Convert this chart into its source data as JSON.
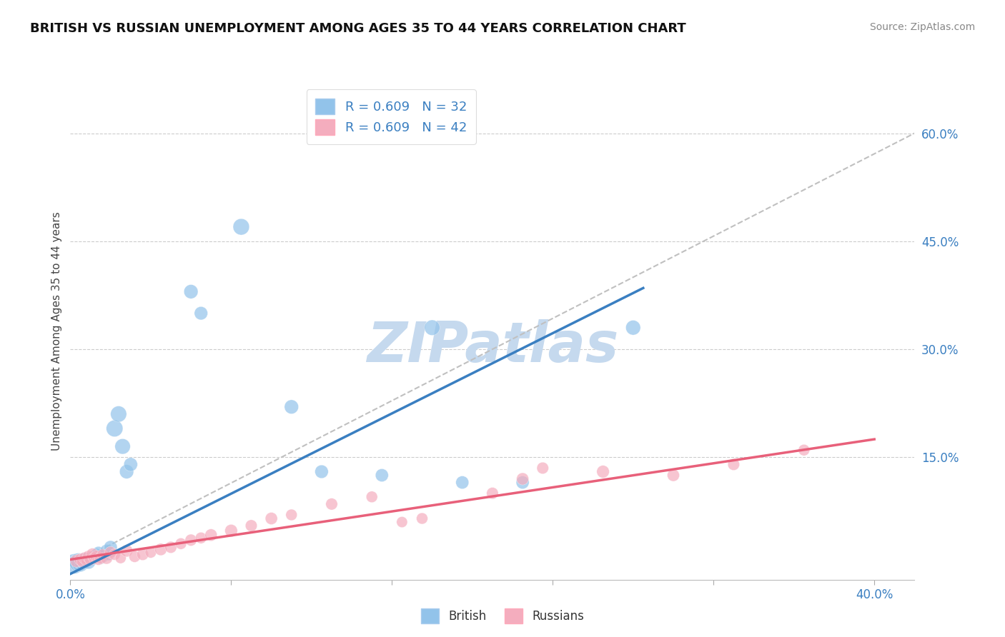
{
  "title": "BRITISH VS RUSSIAN UNEMPLOYMENT AMONG AGES 35 TO 44 YEARS CORRELATION CHART",
  "source": "Source: ZipAtlas.com",
  "ylabel": "Unemployment Among Ages 35 to 44 years",
  "xlim": [
    0.0,
    0.42
  ],
  "ylim": [
    -0.02,
    0.67
  ],
  "british_R": 0.609,
  "british_N": 32,
  "russian_R": 0.609,
  "russian_N": 42,
  "british_color": "#92C3EA",
  "russian_color": "#F4ADBE",
  "british_line_color": "#3A7FC1",
  "russian_line_color": "#E8607A",
  "ref_line_color": "#C0C0C0",
  "watermark_color": "#C5D9EE",
  "title_color": "#111111",
  "source_color": "#888888",
  "axis_color": "#3A7FC1",
  "label_color": "#444444",
  "british_line_x": [
    0.0,
    0.285
  ],
  "british_line_y": [
    -0.012,
    0.385
  ],
  "russian_line_x": [
    0.0,
    0.4
  ],
  "russian_line_y": [
    0.008,
    0.175
  ],
  "ref_line_x": [
    0.0,
    0.42
  ],
  "ref_line_y": [
    0.0,
    0.6
  ],
  "british_x": [
    0.002,
    0.004,
    0.005,
    0.006,
    0.007,
    0.008,
    0.009,
    0.01,
    0.011,
    0.012,
    0.013,
    0.014,
    0.015,
    0.016,
    0.018,
    0.019,
    0.02,
    0.022,
    0.024,
    0.026,
    0.028,
    0.03,
    0.06,
    0.065,
    0.085,
    0.11,
    0.125,
    0.155,
    0.18,
    0.195,
    0.225,
    0.28
  ],
  "british_y": [
    0.002,
    0.004,
    0.003,
    0.005,
    0.006,
    0.007,
    0.005,
    0.008,
    0.01,
    0.012,
    0.015,
    0.018,
    0.01,
    0.012,
    0.02,
    0.015,
    0.025,
    0.19,
    0.21,
    0.165,
    0.13,
    0.14,
    0.38,
    0.35,
    0.47,
    0.22,
    0.13,
    0.125,
    0.33,
    0.115,
    0.115,
    0.33
  ],
  "russian_x": [
    0.003,
    0.005,
    0.006,
    0.007,
    0.008,
    0.009,
    0.01,
    0.011,
    0.012,
    0.013,
    0.014,
    0.015,
    0.016,
    0.018,
    0.02,
    0.022,
    0.025,
    0.028,
    0.032,
    0.036,
    0.04,
    0.045,
    0.05,
    0.055,
    0.06,
    0.065,
    0.07,
    0.08,
    0.09,
    0.1,
    0.11,
    0.13,
    0.15,
    0.165,
    0.175,
    0.21,
    0.225,
    0.235,
    0.265,
    0.3,
    0.33,
    0.365
  ],
  "russian_y": [
    0.006,
    0.008,
    0.005,
    0.01,
    0.007,
    0.012,
    0.008,
    0.015,
    0.01,
    0.012,
    0.008,
    0.01,
    0.015,
    0.01,
    0.018,
    0.015,
    0.01,
    0.02,
    0.012,
    0.015,
    0.018,
    0.022,
    0.025,
    0.03,
    0.035,
    0.038,
    0.042,
    0.048,
    0.055,
    0.065,
    0.07,
    0.085,
    0.095,
    0.06,
    0.065,
    0.1,
    0.12,
    0.135,
    0.13,
    0.125,
    0.14,
    0.16
  ],
  "british_sizes": [
    400,
    350,
    300,
    280,
    260,
    240,
    220,
    200,
    180,
    160,
    150,
    140,
    160,
    150,
    170,
    150,
    180,
    280,
    260,
    240,
    200,
    190,
    200,
    180,
    270,
    200,
    180,
    170,
    240,
    170,
    170,
    220
  ],
  "russian_sizes": [
    160,
    150,
    130,
    140,
    130,
    150,
    140,
    160,
    145,
    155,
    130,
    140,
    120,
    150,
    140,
    130,
    120,
    150,
    130,
    140,
    130,
    150,
    140,
    130,
    140,
    130,
    150,
    160,
    140,
    150,
    130,
    140,
    130,
    120,
    130,
    140,
    150,
    140,
    160,
    150,
    140,
    130
  ]
}
